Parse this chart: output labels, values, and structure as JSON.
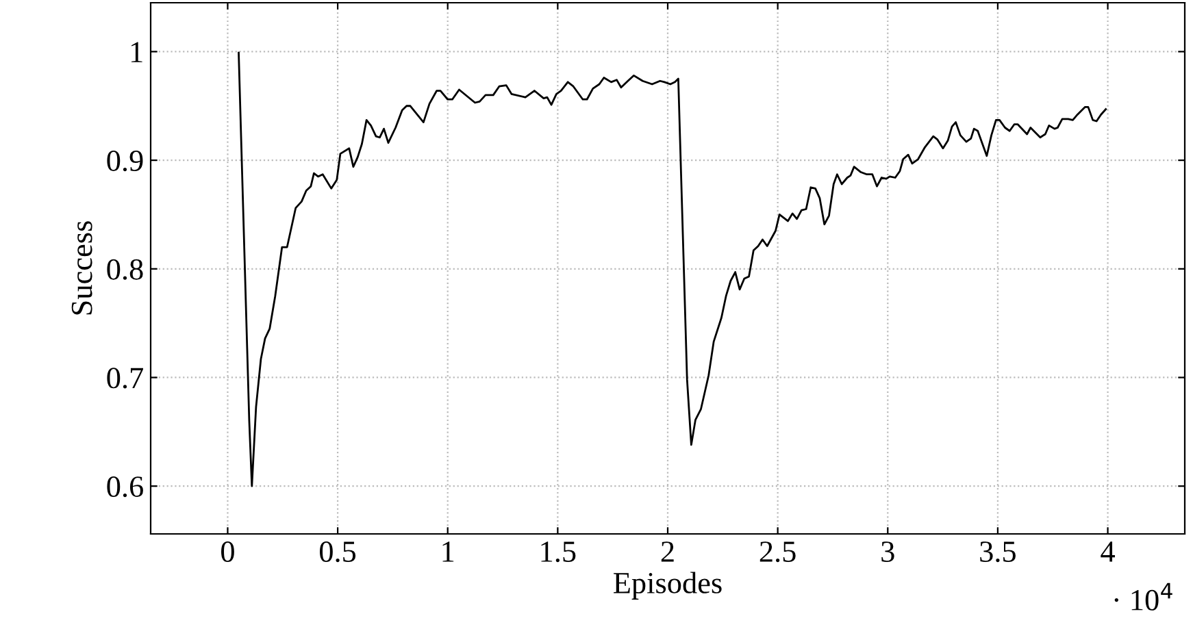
{
  "chart_data": {
    "type": "line",
    "xlabel": "Episodes",
    "ylabel": "Success",
    "xlim": [
      -0.35,
      4.35
    ],
    "ylim": [
      0.556,
      1.045
    ],
    "xticks": [
      0,
      0.5,
      1,
      1.5,
      2,
      2.5,
      3,
      3.5,
      4
    ],
    "yticks": [
      0.6,
      0.7,
      0.8,
      0.9,
      1
    ],
    "grid": true,
    "marker": "none",
    "line_style": "solid",
    "annotations": [
      "· 10$^{4}$"
    ],
    "series": [
      {
        "color": "#000000",
        "x": [
          0.05,
          0.098,
          0.11,
          0.129,
          0.151,
          0.17,
          0.191,
          0.216,
          0.247,
          0.27,
          0.309,
          0.336,
          0.357,
          0.378,
          0.392,
          0.411,
          0.432,
          0.471,
          0.496,
          0.512,
          0.552,
          0.571,
          0.591,
          0.61,
          0.631,
          0.651,
          0.674,
          0.691,
          0.71,
          0.73,
          0.763,
          0.793,
          0.813,
          0.83,
          0.89,
          0.917,
          0.95,
          0.967,
          1.0,
          1.021,
          1.052,
          1.124,
          1.145,
          1.172,
          1.207,
          1.234,
          1.266,
          1.29,
          1.353,
          1.394,
          1.436,
          1.452,
          1.471,
          1.494,
          1.515,
          1.546,
          1.571,
          1.614,
          1.633,
          1.66,
          1.689,
          1.71,
          1.743,
          1.768,
          1.788,
          1.819,
          1.846,
          1.886,
          1.929,
          1.965,
          1.985,
          2.012,
          2.033,
          2.048,
          2.088,
          2.107,
          2.126,
          2.151,
          2.186,
          2.209,
          2.244,
          2.265,
          2.286,
          2.307,
          2.327,
          2.348,
          2.369,
          2.39,
          2.411,
          2.431,
          2.452,
          2.49,
          2.508,
          2.546,
          2.567,
          2.587,
          2.608,
          2.629,
          2.65,
          2.671,
          2.691,
          2.712,
          2.733,
          2.754,
          2.77,
          2.791,
          2.816,
          2.831,
          2.847,
          2.878,
          2.905,
          2.93,
          2.951,
          2.972,
          2.993,
          3.009,
          3.034,
          3.055,
          3.07,
          3.093,
          3.111,
          3.138,
          3.169,
          3.207,
          3.226,
          3.251,
          3.273,
          3.292,
          3.309,
          3.33,
          3.357,
          3.378,
          3.392,
          3.409,
          3.45,
          3.471,
          3.492,
          3.508,
          3.533,
          3.554,
          3.575,
          3.591,
          3.633,
          3.649,
          3.693,
          3.716,
          3.733,
          3.758,
          3.772,
          3.793,
          3.82,
          3.841,
          3.862,
          3.897,
          3.911,
          3.932,
          3.949,
          3.969,
          3.991
        ],
        "values": [
          0.999,
          0.66,
          0.6,
          0.673,
          0.717,
          0.736,
          0.745,
          0.775,
          0.82,
          0.82,
          0.856,
          0.862,
          0.872,
          0.876,
          0.888,
          0.885,
          0.887,
          0.874,
          0.882,
          0.906,
          0.911,
          0.894,
          0.903,
          0.915,
          0.937,
          0.932,
          0.922,
          0.921,
          0.929,
          0.916,
          0.93,
          0.946,
          0.95,
          0.95,
          0.935,
          0.952,
          0.964,
          0.964,
          0.956,
          0.956,
          0.965,
          0.953,
          0.954,
          0.96,
          0.96,
          0.968,
          0.969,
          0.961,
          0.958,
          0.964,
          0.957,
          0.958,
          0.951,
          0.961,
          0.964,
          0.972,
          0.968,
          0.956,
          0.956,
          0.966,
          0.97,
          0.976,
          0.972,
          0.974,
          0.967,
          0.973,
          0.978,
          0.973,
          0.97,
          0.973,
          0.972,
          0.97,
          0.972,
          0.975,
          0.698,
          0.638,
          0.661,
          0.671,
          0.702,
          0.733,
          0.755,
          0.775,
          0.789,
          0.797,
          0.781,
          0.791,
          0.793,
          0.817,
          0.821,
          0.827,
          0.821,
          0.835,
          0.85,
          0.844,
          0.851,
          0.846,
          0.854,
          0.855,
          0.875,
          0.874,
          0.865,
          0.841,
          0.849,
          0.878,
          0.887,
          0.878,
          0.884,
          0.886,
          0.894,
          0.889,
          0.887,
          0.887,
          0.876,
          0.884,
          0.883,
          0.885,
          0.884,
          0.89,
          0.901,
          0.905,
          0.897,
          0.901,
          0.912,
          0.922,
          0.919,
          0.911,
          0.918,
          0.931,
          0.935,
          0.923,
          0.917,
          0.92,
          0.929,
          0.927,
          0.904,
          0.923,
          0.937,
          0.937,
          0.93,
          0.927,
          0.933,
          0.933,
          0.924,
          0.93,
          0.921,
          0.924,
          0.932,
          0.929,
          0.93,
          0.938,
          0.938,
          0.937,
          0.942,
          0.949,
          0.949,
          0.937,
          0.936,
          0.942,
          0.947
        ]
      }
    ]
  }
}
